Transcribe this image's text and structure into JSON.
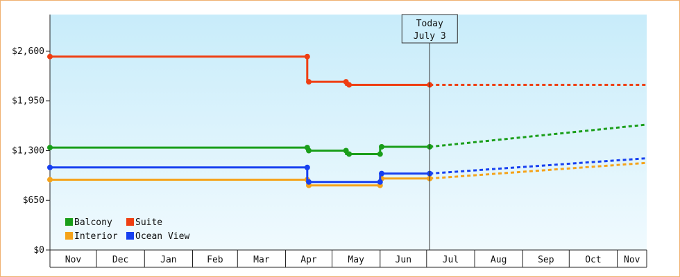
{
  "chart_data": {
    "type": "line",
    "today_annotation": {
      "line1": "Today",
      "line2": "July 3"
    },
    "y_tick_labels": [
      "$0",
      "$650",
      "$1,300",
      "$1,950",
      "$2,600"
    ],
    "y_ticks": [
      0,
      650,
      1300,
      1950,
      2600
    ],
    "ylim": [
      0,
      3080
    ],
    "x_month_labels": [
      "Nov",
      "Dec",
      "Jan",
      "Feb",
      "Mar",
      "Apr",
      "May",
      "Jun",
      "Jul",
      "Aug",
      "Sep",
      "Oct",
      "Nov"
    ],
    "xlim": [
      "2023-11-01",
      "2024-11-20"
    ],
    "today": "2024-07-03",
    "legend_placement": "bottom-left",
    "grid": false,
    "series": [
      {
        "name": "Balcony",
        "color": "#1a9e1a",
        "actual": [
          [
            "2023-11-01",
            1340
          ],
          [
            "2024-04-15",
            1340
          ],
          [
            "2024-04-16",
            1300
          ],
          [
            "2024-05-10",
            1300
          ],
          [
            "2024-05-12",
            1255
          ],
          [
            "2024-06-01",
            1255
          ],
          [
            "2024-06-02",
            1350
          ],
          [
            "2024-07-03",
            1350
          ]
        ],
        "projected": [
          [
            "2024-07-03",
            1350
          ],
          [
            "2024-11-20",
            1640
          ]
        ]
      },
      {
        "name": "Suite",
        "color": "#ef3e12",
        "actual": [
          [
            "2023-11-01",
            2530
          ],
          [
            "2024-04-15",
            2530
          ],
          [
            "2024-04-16",
            2200
          ],
          [
            "2024-05-10",
            2200
          ],
          [
            "2024-05-12",
            2160
          ],
          [
            "2024-07-03",
            2160
          ]
        ],
        "projected": [
          [
            "2024-07-03",
            2160
          ],
          [
            "2024-11-20",
            2160
          ]
        ]
      },
      {
        "name": "Interior",
        "color": "#f5a31a",
        "actual": [
          [
            "2023-11-01",
            920
          ],
          [
            "2024-04-15",
            920
          ],
          [
            "2024-04-16",
            845
          ],
          [
            "2024-06-01",
            845
          ],
          [
            "2024-06-02",
            935
          ],
          [
            "2024-07-03",
            935
          ]
        ],
        "projected": [
          [
            "2024-07-03",
            935
          ],
          [
            "2024-11-20",
            1140
          ]
        ]
      },
      {
        "name": "Ocean View",
        "color": "#1740f0",
        "actual": [
          [
            "2023-11-01",
            1080
          ],
          [
            "2024-04-15",
            1080
          ],
          [
            "2024-04-16",
            890
          ],
          [
            "2024-06-01",
            890
          ],
          [
            "2024-06-02",
            1000
          ],
          [
            "2024-07-03",
            1000
          ]
        ],
        "projected": [
          [
            "2024-07-03",
            1000
          ],
          [
            "2024-11-20",
            1200
          ]
        ]
      }
    ],
    "markers_at": [
      "2023-11-01",
      "2024-04-15",
      "2024-04-16",
      "2024-05-10",
      "2024-05-12",
      "2024-06-01",
      "2024-06-02",
      "2024-07-03"
    ]
  }
}
